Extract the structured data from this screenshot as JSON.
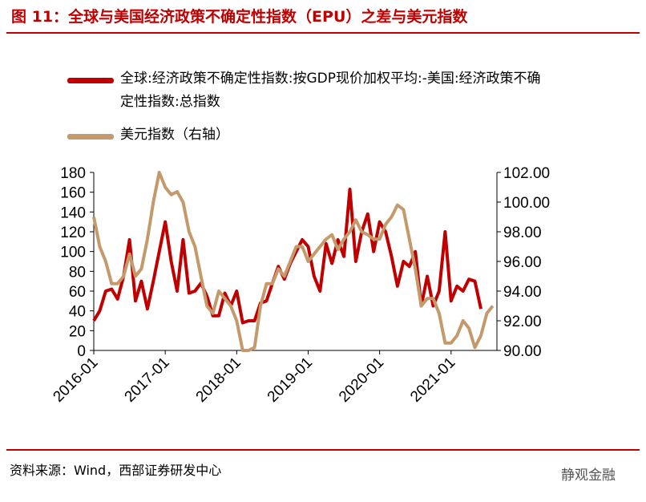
{
  "chart_data": {
    "type": "line",
    "title": "图 11：全球与美国经济政策不确定性指数（EPU）之差与美元指数",
    "source": "资料来源：Wind，西部证券研发中心",
    "watermark": "静观金融",
    "categories": [
      "2016-01",
      null,
      null,
      null,
      null,
      null,
      null,
      null,
      null,
      null,
      null,
      null,
      "2017-01",
      null,
      null,
      null,
      null,
      null,
      null,
      null,
      null,
      null,
      null,
      null,
      "2018-01",
      null,
      null,
      null,
      null,
      null,
      null,
      null,
      null,
      null,
      null,
      null,
      "2019-01",
      null,
      null,
      null,
      null,
      null,
      null,
      null,
      null,
      null,
      null,
      null,
      "2020-01",
      null,
      null,
      null,
      null,
      null,
      null,
      null,
      null,
      null,
      null,
      null,
      "2021-01",
      null,
      null,
      null,
      null,
      null,
      null,
      null
    ],
    "ylim": [
      0,
      180
    ],
    "yticks": [
      0,
      20,
      40,
      60,
      80,
      100,
      120,
      140,
      160,
      180
    ],
    "y2lim": [
      90,
      102
    ],
    "y2ticks": [
      {
        "value": 90,
        "label": "90.00"
      },
      {
        "value": 92,
        "label": "92.00"
      },
      {
        "value": 94,
        "label": "94.00"
      },
      {
        "value": 96,
        "label": "96.00"
      },
      {
        "value": 98,
        "label": "98.00"
      },
      {
        "value": 100,
        "label": "100.00"
      },
      {
        "value": 102,
        "label": "102.00"
      }
    ],
    "series": [
      {
        "name": "全球:经济政策不确定性指数:按GDP现价加权平均:-美国:经济政策不确定性指数:总指数",
        "color": "#c00000",
        "values": [
          30,
          40,
          60,
          62,
          52,
          75,
          112,
          50,
          70,
          42,
          70,
          100,
          130,
          90,
          60,
          112,
          58,
          60,
          68,
          55,
          35,
          35,
          58,
          45,
          60,
          28,
          30,
          30,
          48,
          50,
          68,
          85,
          72,
          88,
          100,
          112,
          105,
          75,
          60,
          108,
          88,
          112,
          95,
          163,
          90,
          120,
          138,
          100,
          130,
          120,
          95,
          65,
          90,
          85,
          100,
          45,
          75,
          45,
          60,
          120,
          50,
          65,
          60,
          72,
          70,
          42,
          null,
          null
        ]
      },
      {
        "name": "美元指数（右轴）",
        "color": "#c49a6c",
        "axis": "y2",
        "values": [
          99,
          97,
          96,
          94.5,
          94.5,
          95,
          96.5,
          95,
          95.5,
          97.5,
          100,
          102,
          101,
          100.5,
          100.7,
          100,
          98,
          97,
          95,
          93,
          92.5,
          94,
          93.5,
          93,
          92,
          90,
          90,
          90.2,
          93,
          94.5,
          94.5,
          95.5,
          95,
          96,
          97,
          97,
          96,
          96.5,
          97,
          97.5,
          97.8,
          96.8,
          97.5,
          98,
          98.8,
          98,
          97.8,
          97.5,
          97.5,
          98.5,
          99,
          99.8,
          99.5,
          97.5,
          95.5,
          93,
          93.5,
          93.5,
          92.5,
          90.5,
          90.5,
          91,
          92,
          91.5,
          90.2,
          91,
          92.5,
          93
        ]
      }
    ]
  }
}
